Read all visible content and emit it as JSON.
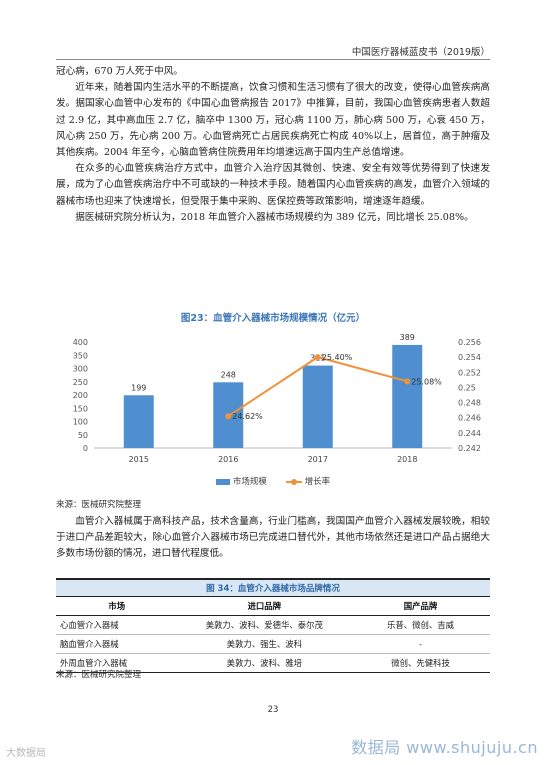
{
  "header": {
    "title": "中国医疗器械蓝皮书（2019版）"
  },
  "text_top": [
    {
      "indent": false,
      "text": "冠心病，670 万人死于中风。"
    },
    {
      "indent": true,
      "text": "近年来，随着国内生活水平的不断提高，饮食习惯和生活习惯有了很大的改变，使得心血管疾病高发。据国家心血管中心发布的《中国心血管病报告 2017》中推算，目前，我国心血管疾病患者人数超过 2.9 亿，其中高血压 2.7 亿，脑卒中 1300 万，冠心病 1100 万，肺心病 500 万，心衰 450 万，风心病 250 万，先心病 200 万。心血管病死亡占居民疾病死亡构成 40%以上，居首位，高于肿瘤及其他疾病。2004 年至今，心脑血管病住院费用年均增速远高于国内生产总值增速。"
    },
    {
      "indent": true,
      "text": "在众多的心血管疾病治疗方式中，血管介入治疗因其微创、快速、安全有效等优势得到了快速发展，成为了心血管疾病治疗中不可或缺的一种技术手段。随着国内心血管疾病的高发，血管介入领域的器械市场也迎来了快速增长，但受限于集中采购、医保控费等政策影响，增速逐年趋缓。"
    },
    {
      "indent": true,
      "text": "据医械研究院分析认为，2018 年血管介入器械市场规模约为 389 亿元，同比增长 25.08%。"
    }
  ],
  "chart_data": {
    "type": "bar",
    "title": "图23：血管介入器械市场规模情况（亿元）",
    "categories": [
      "2015",
      "2016",
      "2017",
      "2018"
    ],
    "series": [
      {
        "name": "市场规模",
        "type": "bar",
        "axis": "left",
        "values": [
          199,
          248,
          311,
          389
        ],
        "labels": [
          "199",
          "248",
          "311",
          "389"
        ],
        "color": "#4f8fd0"
      },
      {
        "name": "增长率",
        "type": "line",
        "axis": "right",
        "values": [
          null,
          0.2462,
          0.254,
          0.2508
        ],
        "labels": [
          "",
          "24.62%",
          "25.40%",
          "25.08%"
        ],
        "color": "#f0913c"
      }
    ],
    "y_left": {
      "min": 0,
      "max": 400,
      "ticks": [
        "0",
        "50",
        "100",
        "150",
        "200",
        "250",
        "300",
        "350",
        "400"
      ]
    },
    "y_right": {
      "min": 0.242,
      "max": 0.256,
      "ticks": [
        "0.242",
        "0.244",
        "0.246",
        "0.248",
        "0.25",
        "0.252",
        "0.254",
        "0.256"
      ]
    },
    "grid": false,
    "legend_position": "bottom"
  },
  "source_1": "来源：医械研究院整理",
  "text_bottom": [
    {
      "indent": true,
      "text": "血管介入器械属于高科技产品，技术含量高，行业门槛高，我国国产血管介入器械发展较晚，相较于进口产品差距较大，除心血管介入器械市场已完成进口替代外，其他市场依然还是进口产品占据绝大多数市场份额的情况，进口替代程度低。"
    }
  ],
  "table": {
    "title": "图 34：血管介入器械市场品牌情况",
    "headers": [
      "市场",
      "进口品牌",
      "国产品牌"
    ],
    "rows": [
      [
        "心血管介入器械",
        "美敦力、波科、爱德华、泰尔茂",
        "乐普、微创、吉威"
      ],
      [
        "脑血管介入器械",
        "美敦力、强生、波科",
        "-"
      ],
      [
        "外周血管介入器械",
        "美敦力、波科、雅培",
        "微创、先健科技"
      ]
    ]
  },
  "source_2": "来源：医械研究院整理",
  "page_number": "23",
  "watermark": {
    "left": "大数据局",
    "right": "数据局 www.shujuju.cn"
  }
}
